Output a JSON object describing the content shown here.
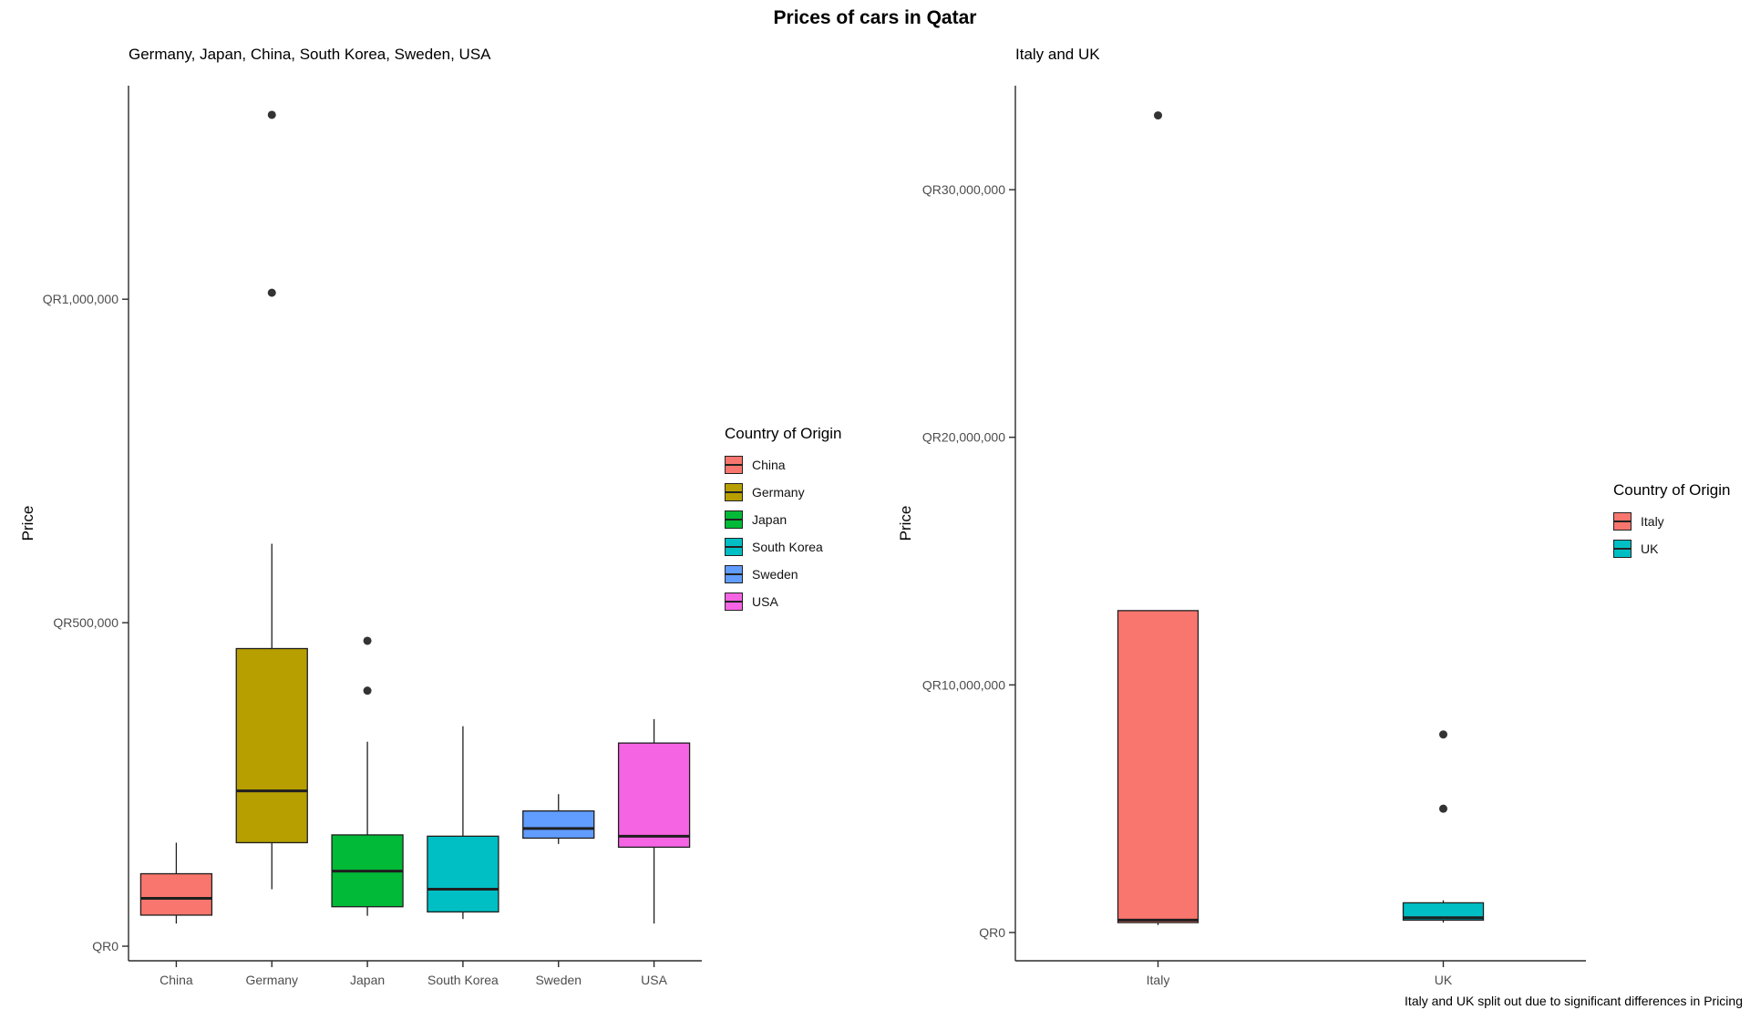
{
  "title": "Prices of cars in Qatar",
  "caption": "Italy and UK split out due to significant differences in Pricing",
  "currency_prefix": "QR",
  "chart_data": [
    {
      "type": "boxplot",
      "title": "Germany, Japan, China, South Korea, Sweden, USA",
      "ylabel": "Price",
      "ylim": [
        0,
        1330000
      ],
      "grid": false,
      "legend": {
        "title": "Country of Origin",
        "position": "right"
      },
      "yticks": [
        {
          "value": 0,
          "label": "QR0"
        },
        {
          "value": 500000,
          "label": "QR500,000"
        },
        {
          "value": 1000000,
          "label": "QR1,000,000"
        }
      ],
      "categories": [
        "China",
        "Germany",
        "Japan",
        "South Korea",
        "Sweden",
        "USA"
      ],
      "series": [
        {
          "name": "China",
          "color": "#F8766D",
          "whisker_low": 35000,
          "q1": 48000,
          "median": 74000,
          "q3": 112000,
          "whisker_high": 160000,
          "outliers": []
        },
        {
          "name": "Germany",
          "color": "#B79F00",
          "whisker_low": 88000,
          "q1": 160000,
          "median": 240000,
          "q3": 460000,
          "whisker_high": 622000,
          "outliers": [
            1010000,
            1285000
          ]
        },
        {
          "name": "Japan",
          "color": "#00BA38",
          "whisker_low": 47000,
          "q1": 61000,
          "median": 116000,
          "q3": 172000,
          "whisker_high": 316000,
          "outliers": [
            395000,
            472000
          ]
        },
        {
          "name": "South Korea",
          "color": "#00BFC4",
          "whisker_low": 42000,
          "q1": 53000,
          "median": 88000,
          "q3": 170000,
          "whisker_high": 340000,
          "outliers": []
        },
        {
          "name": "Sweden",
          "color": "#619CFF",
          "whisker_low": 158000,
          "q1": 167000,
          "median": 182000,
          "q3": 209000,
          "whisker_high": 235000,
          "outliers": []
        },
        {
          "name": "USA",
          "color": "#F564E3",
          "whisker_low": 35000,
          "q1": 153000,
          "median": 170000,
          "q3": 314000,
          "whisker_high": 351000,
          "outliers": []
        }
      ]
    },
    {
      "type": "boxplot",
      "title": "Italy and UK",
      "ylabel": "Price",
      "ylim": [
        0,
        34200000
      ],
      "grid": false,
      "legend": {
        "title": "Country of Origin",
        "position": "right"
      },
      "yticks": [
        {
          "value": 0,
          "label": "QR0"
        },
        {
          "value": 10000000,
          "label": "QR10,000,000"
        },
        {
          "value": 20000000,
          "label": "QR20,000,000"
        },
        {
          "value": 30000000,
          "label": "QR30,000,000"
        }
      ],
      "categories": [
        "Italy",
        "UK"
      ],
      "series": [
        {
          "name": "Italy",
          "color": "#F8766D",
          "whisker_low": 300000,
          "q1": 400000,
          "median": 500000,
          "q3": 13000000,
          "whisker_high": 13000000,
          "outliers": [
            33000000
          ]
        },
        {
          "name": "UK",
          "color": "#00BFC4",
          "whisker_low": 400000,
          "q1": 500000,
          "median": 600000,
          "q3": 1200000,
          "whisker_high": 1300000,
          "outliers": [
            5000000,
            8000000
          ]
        }
      ]
    }
  ]
}
